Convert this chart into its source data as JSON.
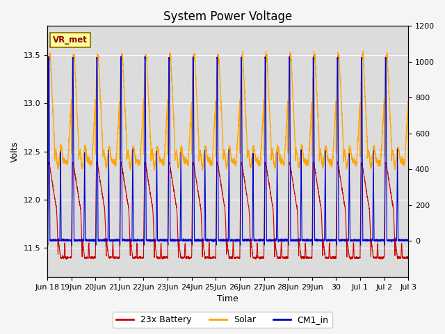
{
  "title": "System Power Voltage",
  "xlabel": "Time",
  "ylabel_left": "Volts",
  "ylim_left": [
    11.2,
    13.8
  ],
  "ylim_right": [
    -200,
    1200
  ],
  "x_ticks_labels": [
    "Jun 18",
    "19Jun",
    "20Jun",
    "21Jun",
    "22Jun",
    "23Jun",
    "24Jun",
    "25Jun",
    "26Jun",
    "27Jun",
    "28Jun",
    "29Jun",
    "30",
    "Jul 1",
    "Jul 2",
    "Jul 3"
  ],
  "x_ticks_pos": [
    0,
    1,
    2,
    3,
    4,
    5,
    6,
    7,
    8,
    9,
    10,
    11,
    12,
    13,
    14,
    15
  ],
  "plot_bg_color": "#dcdcdc",
  "fig_bg_color": "#f5f5f5",
  "grid_color": "#ffffff",
  "vr_met_label": "VR_met",
  "legend_labels": [
    "23x Battery",
    "Solar",
    "CM1_in"
  ],
  "line_colors": [
    "#cc0000",
    "#ffa500",
    "#0000cc"
  ],
  "title_fontsize": 12,
  "axis_fontsize": 9,
  "tick_fontsize": 8,
  "legend_fontsize": 9,
  "battery_min": 11.4,
  "battery_max": 12.38,
  "cm1_min": 11.58,
  "cm1_max": 13.47,
  "solar_baseline": 12.42,
  "solar_peak": 13.52
}
